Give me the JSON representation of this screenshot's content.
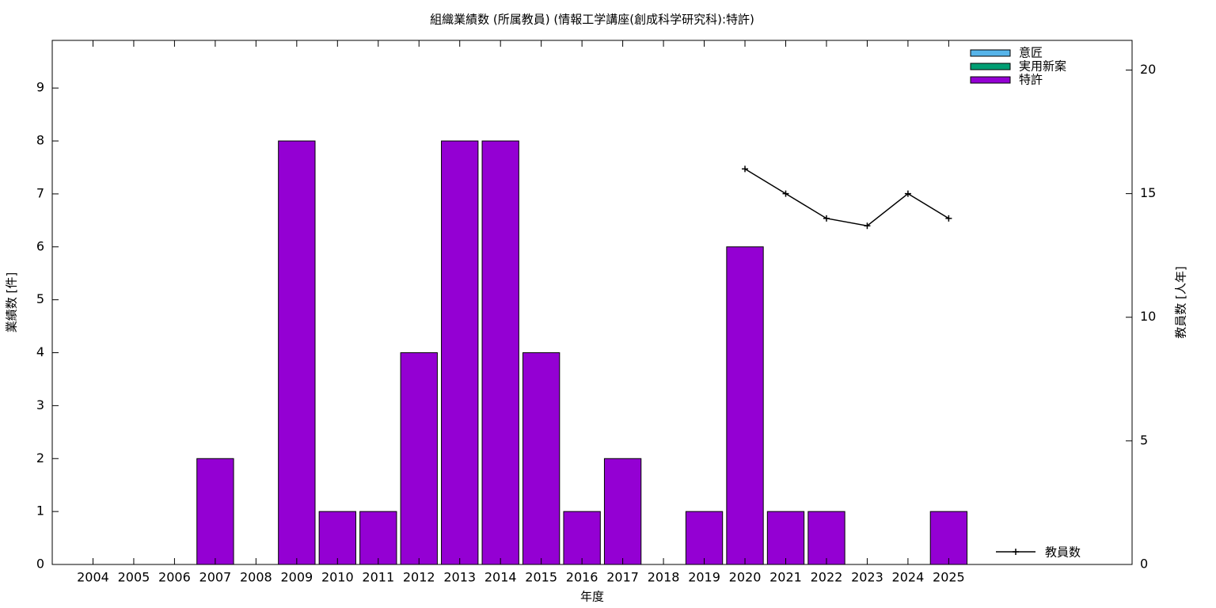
{
  "chart_data": {
    "type": "bar",
    "stacked": true,
    "title": "組織業績数 (所属教員) (情報工学講座(創成科学研究科):特許)",
    "xlabel": "年度",
    "ylabel": "業績数 [件]",
    "y2label": "教員数 [人年]",
    "x": [
      2004,
      2005,
      2006,
      2007,
      2008,
      2009,
      2010,
      2011,
      2012,
      2013,
      2014,
      2015,
      2016,
      2017,
      2018,
      2019,
      2020,
      2021,
      2022,
      2023,
      2024,
      2025
    ],
    "xlim": [
      2003,
      2029.5
    ],
    "xticks": [
      2004,
      2005,
      2006,
      2007,
      2008,
      2009,
      2010,
      2011,
      2012,
      2013,
      2014,
      2015,
      2016,
      2017,
      2018,
      2019,
      2020,
      2021,
      2022,
      2023,
      2024,
      2025
    ],
    "ylim": [
      0,
      9.9
    ],
    "yticks": [
      0,
      1,
      2,
      3,
      4,
      5,
      6,
      7,
      8,
      9
    ],
    "y2lim": [
      0,
      21.2
    ],
    "y2ticks": [
      0,
      5,
      10,
      15,
      20
    ],
    "series": [
      {
        "name": "意匠",
        "color": "#56b4e9",
        "values": [
          0,
          0,
          0,
          0,
          0,
          0,
          0,
          0,
          0,
          0,
          0,
          0,
          0,
          0,
          0,
          0,
          0,
          0,
          0,
          0,
          0,
          0
        ]
      },
      {
        "name": "実用新案",
        "color": "#009e73",
        "values": [
          0,
          0,
          0,
          0,
          0,
          0,
          0,
          0,
          0,
          0,
          0,
          0,
          0,
          0,
          0,
          0,
          0,
          0,
          0,
          0,
          0,
          0
        ]
      },
      {
        "name": "特許",
        "color": "#9400d3",
        "values": [
          0,
          0,
          0,
          2,
          0,
          8,
          1,
          1,
          4,
          8,
          8,
          4,
          1,
          2,
          0,
          1,
          6,
          1,
          1,
          0,
          0,
          1
        ]
      },
      {
        "name": "教員数",
        "color": "#000000",
        "type": "line",
        "axis": "y2",
        "values": [
          null,
          null,
          null,
          null,
          null,
          null,
          null,
          null,
          null,
          null,
          null,
          null,
          null,
          null,
          null,
          null,
          16,
          15,
          14,
          13.7,
          15,
          14
        ]
      }
    ]
  }
}
